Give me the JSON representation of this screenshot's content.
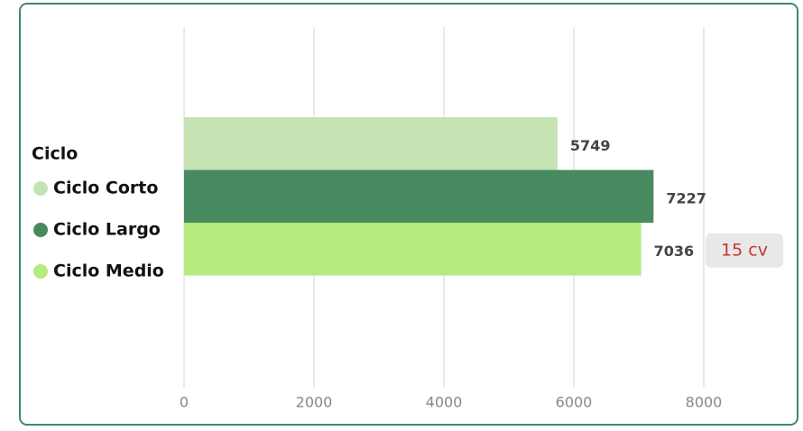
{
  "chart_data": {
    "type": "bar",
    "orientation": "horizontal",
    "legend_title": "Ciclo",
    "categories": [
      "15 cv"
    ],
    "series": [
      {
        "name": "Ciclo Corto",
        "color": "#c5e2b3",
        "values": [
          5749
        ]
      },
      {
        "name": "Ciclo Largo",
        "color": "#488a5f",
        "values": [
          7227
        ]
      },
      {
        "name": "Ciclo Medio",
        "color": "#b5ea7c",
        "values": [
          7036
        ]
      }
    ],
    "xlim": [
      0,
      9000
    ],
    "xticks": [
      0,
      2000,
      4000,
      6000,
      8000
    ],
    "grid": true,
    "legend": "left"
  }
}
